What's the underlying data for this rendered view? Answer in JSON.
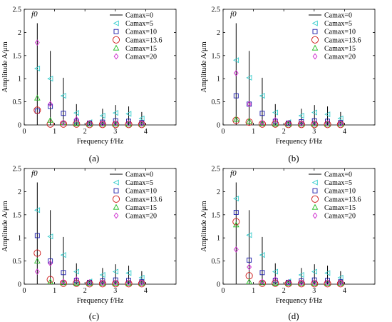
{
  "figure": {
    "ylabel": "Amplitude A/μm",
    "xlabel": "Frequency f/Hz",
    "peak_label": "f0"
  },
  "legend_series": [
    {
      "name": "Camax=0",
      "marker": "stem",
      "color": "#000000"
    },
    {
      "name": "Camax=5",
      "marker": "triangle-left",
      "color": "#33cccc"
    },
    {
      "name": "Camax=10",
      "marker": "square",
      "color": "#1a1aaa"
    },
    {
      "name": "Camax=13.6",
      "marker": "circle",
      "color": "#cc1111"
    },
    {
      "name": "Camax=15",
      "marker": "triangle-up",
      "color": "#22bb22"
    },
    {
      "name": "Camax=20",
      "marker": "diamond",
      "color": "#cc22cc"
    }
  ],
  "chart_data": [
    {
      "type": "scatter",
      "panel": "(a)",
      "xlim": [
        0,
        5
      ],
      "ylim": [
        0,
        2.5
      ],
      "xticks": [
        0,
        1,
        2,
        3,
        4
      ],
      "yticks": [
        0,
        0.5,
        1,
        1.5,
        2,
        2.5
      ],
      "x": [
        0.43,
        0.86,
        1.29,
        1.72,
        2.15,
        2.58,
        3.01,
        3.44,
        3.87
      ],
      "series": [
        {
          "name": "Camax=0",
          "values": [
            2.2,
            1.6,
            1.02,
            0.45,
            0.1,
            0.35,
            0.43,
            0.4,
            0.28
          ]
        },
        {
          "name": "Camax=5",
          "values": [
            1.22,
            1.0,
            0.63,
            0.26,
            0.06,
            0.2,
            0.26,
            0.24,
            0.14
          ]
        },
        {
          "name": "Camax=10",
          "values": [
            0.3,
            0.4,
            0.25,
            0.08,
            0.04,
            0.06,
            0.09,
            0.08,
            0.05
          ]
        },
        {
          "name": "Camax=13.6",
          "values": [
            0.32,
            0.02,
            0.02,
            0.02,
            0.01,
            0.01,
            0.01,
            0.01,
            0.01
          ]
        },
        {
          "name": "Camax=15",
          "values": [
            0.58,
            0.1,
            0.05,
            0.03,
            0.02,
            0.02,
            0.02,
            0.02,
            0.02
          ]
        },
        {
          "name": "Camax=20",
          "values": [
            1.78,
            0.45,
            0.05,
            0.12,
            0.04,
            0.03,
            0.04,
            0.04,
            0.03
          ]
        }
      ]
    },
    {
      "type": "scatter",
      "panel": "(b)",
      "xlim": [
        0,
        5
      ],
      "ylim": [
        0,
        2.5
      ],
      "xticks": [
        0,
        1,
        2,
        3,
        4
      ],
      "yticks": [
        0,
        0.5,
        1,
        1.5,
        2,
        2.5
      ],
      "x": [
        0.43,
        0.86,
        1.29,
        1.72,
        2.15,
        2.58,
        3.01,
        3.44,
        3.87
      ],
      "series": [
        {
          "name": "Camax=0",
          "values": [
            2.2,
            1.6,
            1.02,
            0.45,
            0.1,
            0.35,
            0.43,
            0.4,
            0.28
          ]
        },
        {
          "name": "Camax=5",
          "values": [
            1.4,
            1.02,
            0.63,
            0.27,
            0.06,
            0.2,
            0.27,
            0.23,
            0.14
          ]
        },
        {
          "name": "Camax=10",
          "values": [
            0.63,
            0.45,
            0.25,
            0.08,
            0.04,
            0.07,
            0.09,
            0.08,
            0.05
          ]
        },
        {
          "name": "Camax=13.6",
          "values": [
            0.1,
            0.06,
            0.02,
            0.02,
            0.01,
            0.01,
            0.01,
            0.01,
            0.01
          ]
        },
        {
          "name": "Camax=15",
          "values": [
            0.12,
            0.08,
            0.03,
            0.02,
            0.02,
            0.02,
            0.02,
            0.02,
            0.02
          ]
        },
        {
          "name": "Camax=20",
          "values": [
            1.12,
            0.45,
            0.05,
            0.1,
            0.04,
            0.03,
            0.04,
            0.04,
            0.03
          ]
        }
      ]
    },
    {
      "type": "scatter",
      "panel": "(c)",
      "xlim": [
        0,
        5
      ],
      "ylim": [
        0,
        2.5
      ],
      "xticks": [
        0,
        1,
        2,
        3,
        4
      ],
      "yticks": [
        0,
        0.5,
        1,
        1.5,
        2,
        2.5
      ],
      "x": [
        0.43,
        0.86,
        1.29,
        1.72,
        2.15,
        2.58,
        3.01,
        3.44,
        3.87
      ],
      "series": [
        {
          "name": "Camax=0",
          "values": [
            2.2,
            1.6,
            1.02,
            0.45,
            0.1,
            0.35,
            0.43,
            0.4,
            0.28
          ]
        },
        {
          "name": "Camax=5",
          "values": [
            1.6,
            1.03,
            0.63,
            0.27,
            0.06,
            0.2,
            0.27,
            0.24,
            0.14
          ]
        },
        {
          "name": "Camax=10",
          "values": [
            1.05,
            0.5,
            0.25,
            0.08,
            0.04,
            0.07,
            0.09,
            0.08,
            0.05
          ]
        },
        {
          "name": "Camax=13.6",
          "values": [
            0.67,
            0.1,
            0.02,
            0.02,
            0.01,
            0.01,
            0.01,
            0.01,
            0.01
          ]
        },
        {
          "name": "Camax=15",
          "values": [
            0.5,
            0.05,
            0.03,
            0.02,
            0.02,
            0.02,
            0.02,
            0.02,
            0.02
          ]
        },
        {
          "name": "Camax=20",
          "values": [
            0.27,
            0.45,
            0.05,
            0.1,
            0.04,
            0.03,
            0.04,
            0.04,
            0.03
          ]
        }
      ]
    },
    {
      "type": "scatter",
      "panel": "(d)",
      "xlim": [
        0,
        5
      ],
      "ylim": [
        0,
        2.5
      ],
      "xticks": [
        0,
        1,
        2,
        3,
        4
      ],
      "yticks": [
        0,
        0.5,
        1,
        1.5,
        2,
        2.5
      ],
      "x": [
        0.43,
        0.86,
        1.29,
        1.72,
        2.15,
        2.58,
        3.01,
        3.44,
        3.87
      ],
      "series": [
        {
          "name": "Camax=0",
          "values": [
            2.2,
            1.6,
            1.02,
            0.45,
            0.1,
            0.35,
            0.43,
            0.4,
            0.28
          ]
        },
        {
          "name": "Camax=5",
          "values": [
            1.85,
            1.06,
            0.63,
            0.27,
            0.06,
            0.2,
            0.27,
            0.24,
            0.14
          ]
        },
        {
          "name": "Camax=10",
          "values": [
            1.55,
            0.52,
            0.25,
            0.08,
            0.04,
            0.07,
            0.09,
            0.08,
            0.05
          ]
        },
        {
          "name": "Camax=13.6",
          "values": [
            1.35,
            0.18,
            0.02,
            0.02,
            0.01,
            0.01,
            0.01,
            0.01,
            0.01
          ]
        },
        {
          "name": "Camax=15",
          "values": [
            1.28,
            0.05,
            0.03,
            0.02,
            0.02,
            0.02,
            0.02,
            0.02,
            0.02
          ]
        },
        {
          "name": "Camax=20",
          "values": [
            0.75,
            0.37,
            0.05,
            0.1,
            0.04,
            0.03,
            0.04,
            0.04,
            0.03
          ]
        }
      ]
    }
  ]
}
